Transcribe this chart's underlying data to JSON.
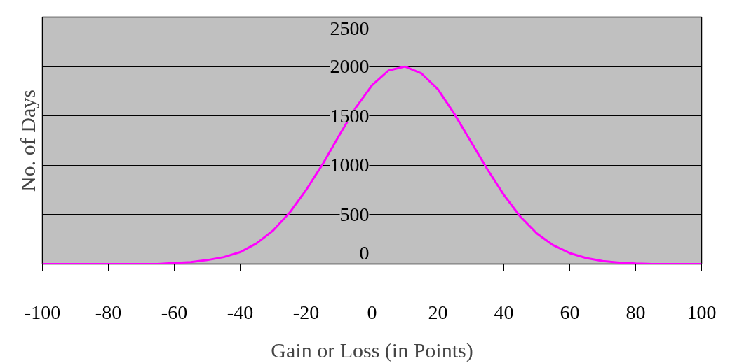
{
  "chart_data": {
    "type": "line",
    "xlabel": "Gain or Loss (in Points)",
    "ylabel": "No. of Days",
    "x": [
      -100,
      -95,
      -90,
      -85,
      -80,
      -75,
      -70,
      -65,
      -60,
      -55,
      -50,
      -45,
      -40,
      -35,
      -30,
      -25,
      -20,
      -15,
      -10,
      -5,
      0,
      5,
      10,
      15,
      20,
      25,
      30,
      35,
      40,
      45,
      50,
      55,
      60,
      65,
      70,
      75,
      80,
      85,
      90,
      95,
      100
    ],
    "series": [
      {
        "color": "#ff00ff",
        "values": [
          0,
          0,
          0,
          0,
          0,
          0,
          0,
          0,
          10,
          20,
          40,
          70,
          120,
          210,
          340,
          520,
          750,
          1010,
          1300,
          1580,
          1810,
          1960,
          2000,
          1930,
          1770,
          1520,
          1240,
          960,
          700,
          480,
          310,
          190,
          110,
          60,
          30,
          15,
          5,
          0,
          0,
          0,
          0
        ]
      }
    ],
    "xlim": [
      -100,
      100
    ],
    "xticks": [
      -100,
      -80,
      -60,
      -40,
      -20,
      0,
      20,
      40,
      60,
      80,
      100
    ],
    "ylim": [
      0,
      2500
    ],
    "yticks": [
      0,
      500,
      1000,
      1500,
      2000,
      2500
    ],
    "grid": "y",
    "marker": "none",
    "line_style": "solid"
  }
}
